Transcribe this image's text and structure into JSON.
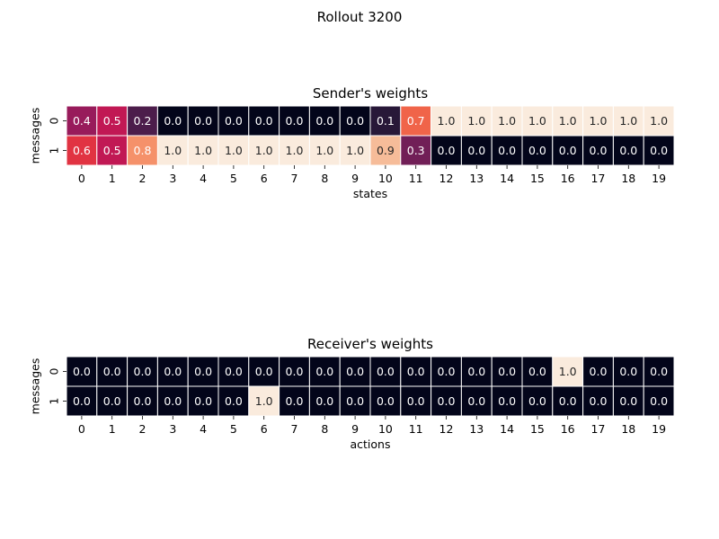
{
  "figure_title": "Rollout 3200",
  "chart_data": [
    {
      "type": "heatmap",
      "title": "Sender's weights",
      "xlabel": "states",
      "ylabel": "messages",
      "x_tick_labels": [
        "0",
        "1",
        "2",
        "3",
        "4",
        "5",
        "6",
        "7",
        "8",
        "9",
        "10",
        "11",
        "12",
        "13",
        "14",
        "15",
        "16",
        "17",
        "18",
        "19"
      ],
      "y_tick_labels": [
        "0",
        "1"
      ],
      "values": [
        [
          0.4,
          0.5,
          0.2,
          0.0,
          0.0,
          0.0,
          0.0,
          0.0,
          0.0,
          0.0,
          0.1,
          0.7,
          1.0,
          1.0,
          1.0,
          1.0,
          1.0,
          1.0,
          1.0,
          1.0
        ],
        [
          0.6,
          0.5,
          0.8,
          1.0,
          1.0,
          1.0,
          1.0,
          1.0,
          1.0,
          1.0,
          0.9,
          0.3,
          0.0,
          0.0,
          0.0,
          0.0,
          0.0,
          0.0,
          0.0,
          0.0
        ]
      ],
      "value_range": [
        0,
        1
      ],
      "colormap": "rocket",
      "annotated": true,
      "annotation_format": "0.1f"
    },
    {
      "type": "heatmap",
      "title": "Receiver's weights",
      "xlabel": "actions",
      "ylabel": "messages",
      "x_tick_labels": [
        "0",
        "1",
        "2",
        "3",
        "4",
        "5",
        "6",
        "7",
        "8",
        "9",
        "10",
        "11",
        "12",
        "13",
        "14",
        "15",
        "16",
        "17",
        "18",
        "19"
      ],
      "y_tick_labels": [
        "0",
        "1"
      ],
      "values": [
        [
          0.0,
          0.0,
          0.0,
          0.0,
          0.0,
          0.0,
          0.0,
          0.0,
          0.0,
          0.0,
          0.0,
          0.0,
          0.0,
          0.0,
          0.0,
          0.0,
          1.0,
          0.0,
          0.0,
          0.0
        ],
        [
          0.0,
          0.0,
          0.0,
          0.0,
          0.0,
          0.0,
          1.0,
          0.0,
          0.0,
          0.0,
          0.0,
          0.0,
          0.0,
          0.0,
          0.0,
          0.0,
          0.0,
          0.0,
          0.0,
          0.0
        ]
      ],
      "value_range": [
        0,
        1
      ],
      "colormap": "rocket",
      "annotated": true,
      "annotation_format": "0.1f"
    }
  ]
}
